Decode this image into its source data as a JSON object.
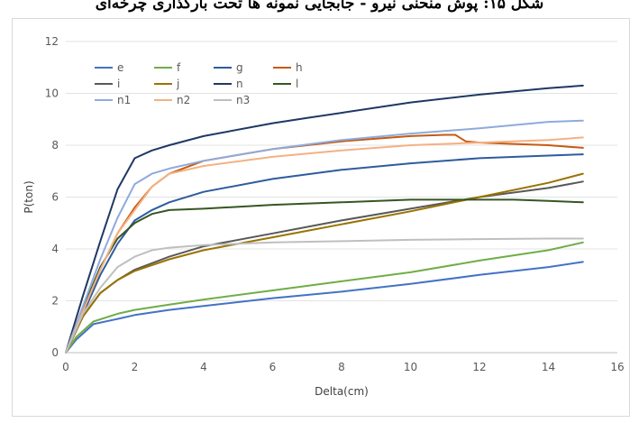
{
  "caption": "شکل ۱۵: پوش منحنی نیرو - جابجایی نمونه ها تحت بارگذاری چرخه‌ای",
  "chart_data": {
    "type": "line",
    "xlabel": "Delta(cm)",
    "ylabel": "P(ton)",
    "xlim": [
      0,
      16
    ],
    "ylim": [
      0,
      12
    ],
    "xticks": [
      0,
      2,
      4,
      6,
      8,
      10,
      12,
      14,
      16
    ],
    "yticks": [
      0,
      2,
      4,
      6,
      8,
      10,
      12
    ],
    "grid": "horizontal",
    "legend_position": "top-left",
    "series": [
      {
        "name": "e",
        "color": "#4472C4",
        "points": [
          [
            0,
            0
          ],
          [
            0.3,
            0.5
          ],
          [
            0.8,
            1.1
          ],
          [
            1.5,
            1.3
          ],
          [
            2,
            1.45
          ],
          [
            3,
            1.65
          ],
          [
            4,
            1.8
          ],
          [
            6,
            2.1
          ],
          [
            8,
            2.35
          ],
          [
            10,
            2.65
          ],
          [
            12,
            3.0
          ],
          [
            14,
            3.3
          ],
          [
            15,
            3.5
          ]
        ]
      },
      {
        "name": "f",
        "color": "#70AD47",
        "points": [
          [
            0,
            0
          ],
          [
            0.3,
            0.6
          ],
          [
            0.8,
            1.2
          ],
          [
            1.5,
            1.5
          ],
          [
            2,
            1.65
          ],
          [
            3,
            1.85
          ],
          [
            4,
            2.05
          ],
          [
            6,
            2.4
          ],
          [
            8,
            2.75
          ],
          [
            10,
            3.1
          ],
          [
            12,
            3.55
          ],
          [
            14,
            3.95
          ],
          [
            15,
            4.25
          ]
        ]
      },
      {
        "name": "g",
        "color": "#2E5C9E",
        "points": [
          [
            0,
            0
          ],
          [
            0.5,
            1.5
          ],
          [
            1,
            3
          ],
          [
            1.5,
            4.2
          ],
          [
            2,
            5.1
          ],
          [
            2.5,
            5.5
          ],
          [
            3,
            5.8
          ],
          [
            4,
            6.2
          ],
          [
            6,
            6.7
          ],
          [
            8,
            7.05
          ],
          [
            10,
            7.3
          ],
          [
            12,
            7.5
          ],
          [
            14,
            7.6
          ],
          [
            15,
            7.65
          ]
        ]
      },
      {
        "name": "h",
        "color": "#C55A11",
        "points": [
          [
            0,
            0
          ],
          [
            0.5,
            1.6
          ],
          [
            1,
            3.2
          ],
          [
            1.5,
            4.6
          ],
          [
            2,
            5.6
          ],
          [
            2.5,
            6.4
          ],
          [
            3,
            6.9
          ],
          [
            4,
            7.4
          ],
          [
            6,
            7.85
          ],
          [
            8,
            8.15
          ],
          [
            10,
            8.35
          ],
          [
            11,
            8.4
          ],
          [
            11.3,
            8.4
          ],
          [
            11.6,
            8.15
          ],
          [
            12,
            8.1
          ],
          [
            13,
            8.05
          ],
          [
            14,
            8.0
          ],
          [
            15,
            7.9
          ]
        ]
      },
      {
        "name": "i",
        "color": "#595959",
        "points": [
          [
            0,
            0
          ],
          [
            0.5,
            1.4
          ],
          [
            1,
            2.3
          ],
          [
            1.5,
            2.8
          ],
          [
            2,
            3.2
          ],
          [
            3,
            3.7
          ],
          [
            4,
            4.1
          ],
          [
            6,
            4.6
          ],
          [
            8,
            5.1
          ],
          [
            10,
            5.55
          ],
          [
            12,
            6.0
          ],
          [
            14,
            6.35
          ],
          [
            15,
            6.6
          ]
        ]
      },
      {
        "name": "j",
        "color": "#997300",
        "points": [
          [
            0,
            0
          ],
          [
            0.5,
            1.4
          ],
          [
            1,
            2.3
          ],
          [
            1.5,
            2.8
          ],
          [
            2,
            3.15
          ],
          [
            3,
            3.6
          ],
          [
            4,
            3.95
          ],
          [
            6,
            4.45
          ],
          [
            8,
            4.95
          ],
          [
            10,
            5.45
          ],
          [
            12,
            6.0
          ],
          [
            14,
            6.55
          ],
          [
            15,
            6.9
          ]
        ]
      },
      {
        "name": "n",
        "color": "#1F3864",
        "points": [
          [
            0,
            0
          ],
          [
            0.5,
            2.2
          ],
          [
            1,
            4.3
          ],
          [
            1.5,
            6.3
          ],
          [
            2,
            7.5
          ],
          [
            2.5,
            7.8
          ],
          [
            3,
            8.0
          ],
          [
            4,
            8.35
          ],
          [
            6,
            8.85
          ],
          [
            7,
            9.05
          ],
          [
            8,
            9.25
          ],
          [
            10,
            9.65
          ],
          [
            12,
            9.95
          ],
          [
            14,
            10.2
          ],
          [
            15,
            10.3
          ]
        ]
      },
      {
        "name": "l",
        "color": "#375623",
        "points": [
          [
            0,
            0
          ],
          [
            0.5,
            1.7
          ],
          [
            1,
            3.3
          ],
          [
            1.5,
            4.4
          ],
          [
            2,
            5.0
          ],
          [
            2.5,
            5.35
          ],
          [
            3,
            5.5
          ],
          [
            4,
            5.55
          ],
          [
            6,
            5.7
          ],
          [
            8,
            5.8
          ],
          [
            10,
            5.9
          ],
          [
            12,
            5.9
          ],
          [
            13,
            5.9
          ],
          [
            14,
            5.85
          ],
          [
            15,
            5.8
          ]
        ]
      },
      {
        "name": "n1",
        "color": "#8FAADC",
        "points": [
          [
            0,
            0
          ],
          [
            0.5,
            1.8
          ],
          [
            1,
            3.6
          ],
          [
            1.5,
            5.2
          ],
          [
            2,
            6.5
          ],
          [
            2.5,
            6.9
          ],
          [
            3,
            7.1
          ],
          [
            4,
            7.4
          ],
          [
            6,
            7.85
          ],
          [
            8,
            8.2
          ],
          [
            10,
            8.45
          ],
          [
            12,
            8.65
          ],
          [
            14,
            8.9
          ],
          [
            15,
            8.95
          ]
        ]
      },
      {
        "name": "n2",
        "color": "#F4B183",
        "points": [
          [
            0,
            0
          ],
          [
            0.5,
            1.6
          ],
          [
            1,
            3.2
          ],
          [
            1.5,
            4.6
          ],
          [
            2,
            5.5
          ],
          [
            2.5,
            6.4
          ],
          [
            3,
            6.9
          ],
          [
            4,
            7.2
          ],
          [
            6,
            7.55
          ],
          [
            8,
            7.8
          ],
          [
            10,
            8.0
          ],
          [
            12,
            8.1
          ],
          [
            14,
            8.2
          ],
          [
            15,
            8.3
          ]
        ]
      },
      {
        "name": "n3",
        "color": "#BFBFBF",
        "points": [
          [
            0,
            0
          ],
          [
            0.5,
            1.5
          ],
          [
            1,
            2.5
          ],
          [
            1.5,
            3.3
          ],
          [
            2,
            3.7
          ],
          [
            2.5,
            3.95
          ],
          [
            3,
            4.05
          ],
          [
            4,
            4.15
          ],
          [
            6,
            4.25
          ],
          [
            8,
            4.3
          ],
          [
            10,
            4.35
          ],
          [
            12,
            4.38
          ],
          [
            14,
            4.4
          ],
          [
            15,
            4.4
          ]
        ]
      }
    ]
  }
}
